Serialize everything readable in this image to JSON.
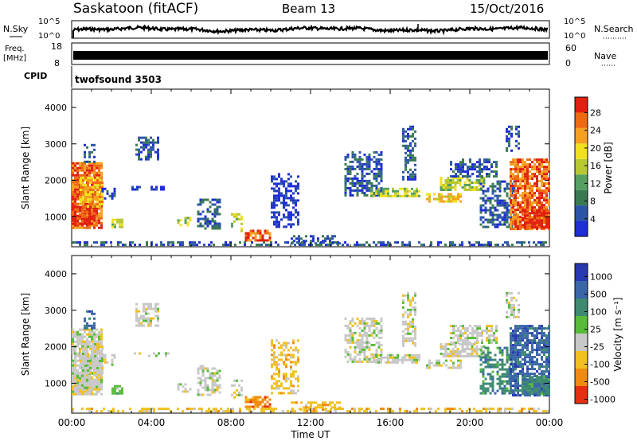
{
  "header": {
    "station": "Saskatoon (fitACF)",
    "beam": "Beam 13",
    "date": "15/Oct/2016"
  },
  "top_strip": {
    "left_label": "N.Sky",
    "right_label": "N.Search",
    "ticks_left": [
      "10^5",
      "10^0"
    ],
    "ticks_right": [
      "10^5",
      "10^0"
    ]
  },
  "freq_strip": {
    "left_label_line1": "Freq.",
    "left_label_line2": "[MHz]",
    "ticks_left": [
      "18",
      "8"
    ],
    "right_label": "Nave",
    "ticks_right": [
      "60",
      "0"
    ]
  },
  "cpid_strip": {
    "label": "CPID",
    "program": "twofsound 3503"
  },
  "chart_data": [
    {
      "type": "heatmap",
      "quantity": "Power",
      "ylabel": "Slant Range [km]",
      "ylim": [
        180,
        4500
      ],
      "yticks": [
        1000,
        2000,
        3000,
        4000
      ],
      "xlim_hours": [
        0,
        24
      ],
      "colorbar": {
        "label": "Power [dB]",
        "ticks": [
          4,
          8,
          12,
          16,
          20,
          24,
          28
        ],
        "colors": [
          "#1e2dd4",
          "#2c55a8",
          "#3a7a52",
          "#55a060",
          "#b8c830",
          "#f0e020",
          "#f5a020",
          "#ee6a10",
          "#e02010"
        ],
        "range": [
          0,
          31.5
        ]
      }
    },
    {
      "type": "heatmap",
      "quantity": "Velocity",
      "ylabel": "Slant Range [km]",
      "ylim": [
        180,
        4500
      ],
      "yticks": [
        1000,
        2000,
        3000,
        4000
      ],
      "xlim_hours": [
        0,
        24
      ],
      "colorbar": {
        "label": "Velocity [m s⁻¹]",
        "ticks": [
          "1000",
          "500",
          "100",
          "25",
          "-25",
          "-100",
          "-500",
          "-1000"
        ],
        "colors": [
          "#2838b0",
          "#3a66a8",
          "#3e8a70",
          "#58bb3a",
          "#c8c8c8",
          "#f0c020",
          "#f08a10",
          "#e23010"
        ]
      }
    }
  ],
  "x_axis": {
    "ticks": [
      "00:00",
      "04:00",
      "08:00",
      "12:00",
      "16:00",
      "20:00",
      "00:00"
    ],
    "label": "Time UT"
  }
}
